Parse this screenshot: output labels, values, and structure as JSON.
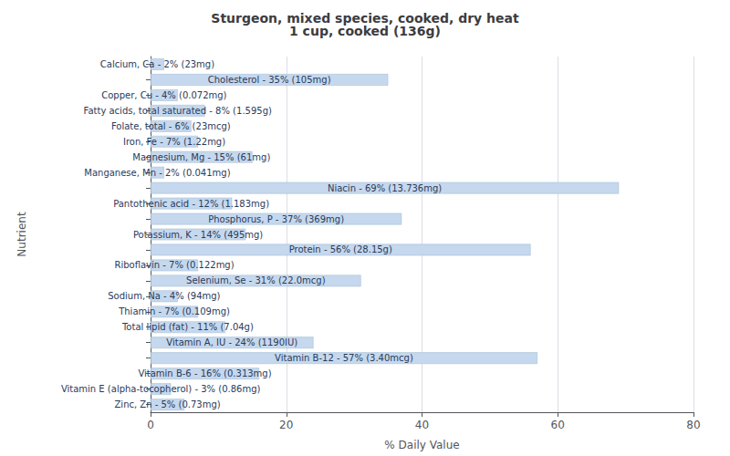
{
  "chart_data": {
    "type": "bar",
    "orientation": "horizontal",
    "title": "Sturgeon, mixed species, cooked, dry heat\n1 cup, cooked (136g)",
    "xlabel": "% Daily Value",
    "ylabel": "Nutrient",
    "categories": [
      "Calcium, Ca - 2% (23mg)",
      "Cholesterol - 35% (105mg)",
      "Copper, Cu - 4% (0.072mg)",
      "Fatty acids, total saturated - 8% (1.595g)",
      "Folate, total - 6% (23mcg)",
      "Iron, Fe - 7% (1.22mg)",
      "Magnesium, Mg - 15% (61mg)",
      "Manganese, Mn - 2% (0.041mg)",
      "Niacin - 69% (13.736mg)",
      "Pantothenic acid - 12% (1.183mg)",
      "Phosphorus, P - 37% (369mg)",
      "Potassium, K - 14% (495mg)",
      "Protein - 56% (28.15g)",
      "Riboflavin - 7% (0.122mg)",
      "Selenium, Se - 31% (22.0mcg)",
      "Sodium, Na - 4% (94mg)",
      "Thiamin - 7% (0.109mg)",
      "Total lipid (fat) - 11% (7.04g)",
      "Vitamin A, IU - 24% (1190IU)",
      "Vitamin B-12 - 57% (3.40mcg)",
      "Vitamin B-6 - 16% (0.313mg)",
      "Vitamin E (alpha-tocopherol) - 3% (0.86mg)",
      "Zinc, Zn - 5% (0.73mg)"
    ],
    "values": [
      2,
      35,
      4,
      8,
      6,
      7,
      15,
      2,
      69,
      12,
      37,
      14,
      56,
      7,
      31,
      4,
      7,
      11,
      24,
      57,
      16,
      3,
      5
    ],
    "color": "#c5d8ed",
    "xlim": [
      0,
      80
    ],
    "xticks": [
      0,
      20,
      40,
      60,
      80
    ],
    "grid": true,
    "tick_labels": "x"
  }
}
